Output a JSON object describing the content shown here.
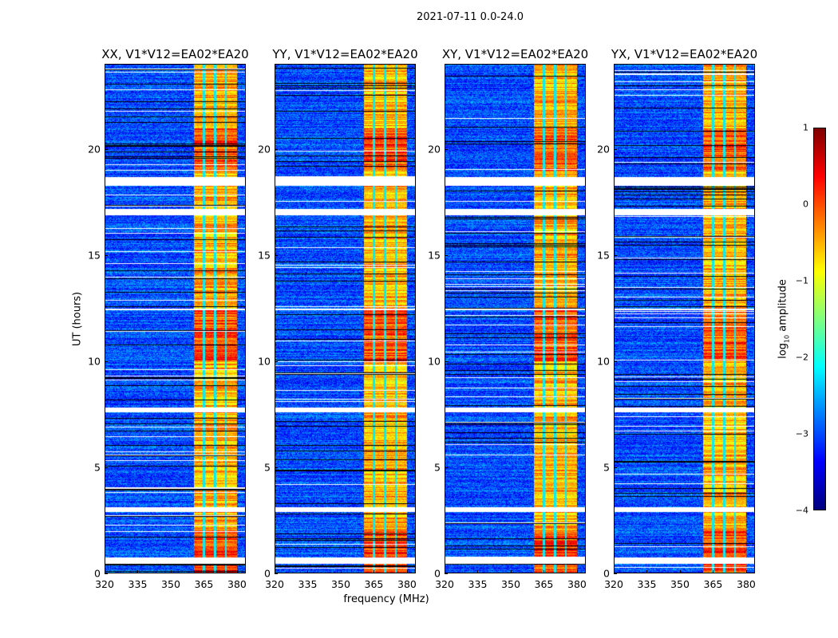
{
  "figure_title": "2021-07-11 0.0-24.0",
  "chart_data": {
    "type": "heatmap",
    "panels": [
      {
        "title": "XX, V1*V12=EA02*EA20"
      },
      {
        "title": "YY, V1*V12=EA02*EA20"
      },
      {
        "title": "XY, V1*V12=EA02*EA20"
      },
      {
        "title": "YX, V1*V12=EA02*EA20"
      }
    ],
    "xlabel": "frequency (MHz)",
    "ylabel": "UT (hours)",
    "xlim": [
      320,
      384
    ],
    "ylim": [
      0,
      24
    ],
    "xticks": [
      320,
      335,
      350,
      365,
      380
    ],
    "xtick_labels": [
      "320",
      "335",
      "350",
      "365",
      "380"
    ],
    "yticks": [
      0,
      5,
      10,
      15,
      20
    ],
    "ytick_labels": [
      "0",
      "5",
      "10",
      "15",
      "20"
    ],
    "colorbar": {
      "label_prefix": "log",
      "label_sub": "10",
      "label_suffix": " amplitude",
      "range": [
        -4,
        1
      ],
      "ticks": [
        1,
        0,
        -1,
        -2,
        -3,
        -4
      ],
      "tick_labels": [
        "1",
        "0",
        "−1",
        "−2",
        "−3",
        "−4"
      ],
      "colormap": "jet"
    },
    "strong_band_mhz": [
      360.5,
      380
    ],
    "subband_edges_mhz": [
      365,
      370,
      375
    ],
    "background_log_amplitude": -3,
    "band_log_amplitude": -0.5,
    "flagged_hours": [
      [
        0.45,
        0.75
      ],
      [
        2.9,
        3.1
      ],
      [
        7.6,
        7.8
      ],
      [
        12.4,
        12.5
      ],
      [
        16.9,
        17.2
      ],
      [
        18.3,
        18.7
      ]
    ]
  }
}
